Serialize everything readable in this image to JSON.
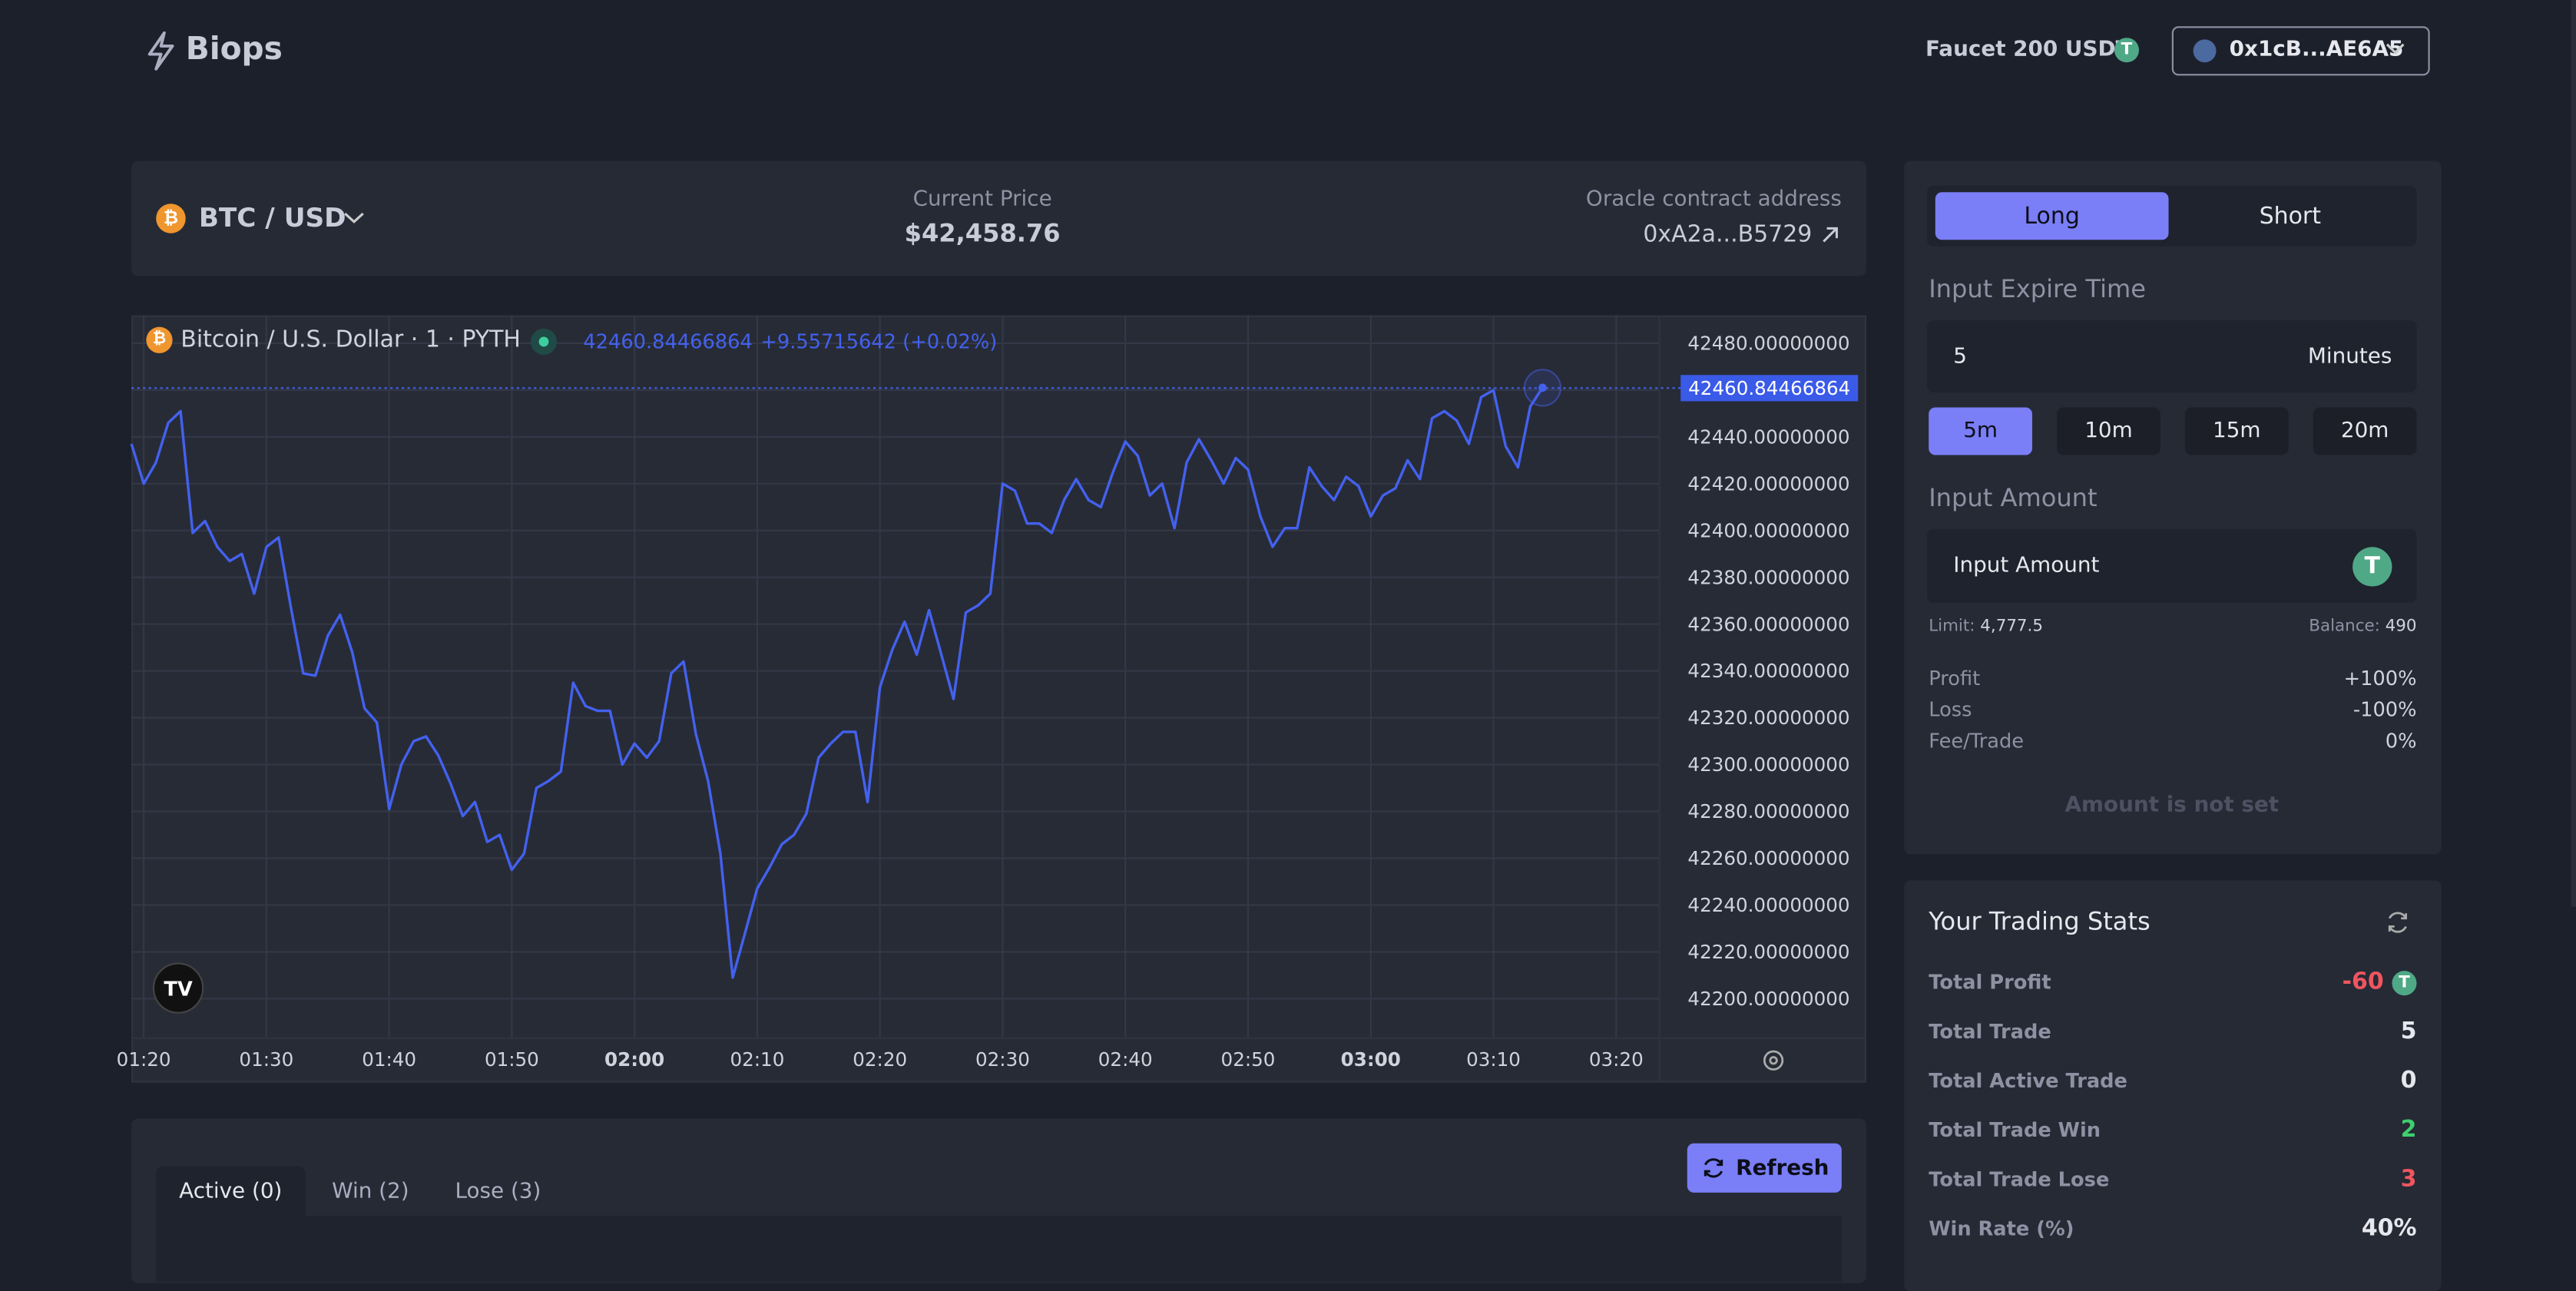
{
  "header": {
    "brand": "Biops",
    "faucet": "Faucet 200 USDT",
    "wallet": "0x1cB...AE6A5"
  },
  "market": {
    "pair": "BTC / USD",
    "price_label": "Current Price",
    "price": "$42,458.76",
    "oracle_label": "Oracle contract address",
    "oracle": "0xA2a...B5729"
  },
  "price_chart": {
    "type": "line",
    "title": "Bitcoin / U.S. Dollar · 1 · PYTH",
    "last_value": 42460.84466864,
    "change": "+9.55715642 (+0.02%)",
    "x": [
      "01:19",
      "01:20",
      "01:21",
      "01:22",
      "01:23",
      "01:24",
      "01:25",
      "01:26",
      "01:27",
      "01:28",
      "01:29",
      "01:30",
      "01:31",
      "01:32",
      "01:33",
      "01:34",
      "01:35",
      "01:36",
      "01:37",
      "01:38",
      "01:39",
      "01:40",
      "01:41",
      "01:42",
      "01:43",
      "01:44",
      "01:45",
      "01:46",
      "01:47",
      "01:48",
      "01:49",
      "01:50",
      "01:51",
      "01:52",
      "01:53",
      "01:54",
      "01:55",
      "01:56",
      "01:57",
      "01:58",
      "01:59",
      "02:00",
      "02:01",
      "02:02",
      "02:03",
      "02:04",
      "02:05",
      "02:06",
      "02:07",
      "02:08",
      "02:09",
      "02:10",
      "02:11",
      "02:12",
      "02:13",
      "02:14",
      "02:15",
      "02:16",
      "02:17",
      "02:18",
      "02:19",
      "02:20",
      "02:21",
      "02:22",
      "02:23",
      "02:24",
      "02:25",
      "02:26",
      "02:27",
      "02:28",
      "02:29",
      "02:30",
      "02:31",
      "02:32",
      "02:33",
      "02:34",
      "02:35",
      "02:36",
      "02:37",
      "02:38",
      "02:39",
      "02:40",
      "02:41",
      "02:42",
      "02:43",
      "02:44",
      "02:45",
      "02:46",
      "02:47",
      "02:48",
      "02:49",
      "02:50",
      "02:51",
      "02:52",
      "02:53",
      "02:54",
      "02:55",
      "02:56",
      "02:57",
      "02:58",
      "02:59",
      "03:00",
      "03:01",
      "03:02",
      "03:03",
      "03:04",
      "03:05",
      "03:06",
      "03:07",
      "03:08",
      "03:09",
      "03:10",
      "03:11",
      "03:12",
      "03:13",
      "03:14"
    ],
    "series": [
      {
        "color": "#4361ee",
        "values": [
          42437,
          42420,
          42429,
          42446,
          42451,
          42399,
          42404,
          42393,
          42387,
          42390,
          42373,
          42393,
          42397,
          42367,
          42339,
          42338,
          42355,
          42364,
          42348,
          42324,
          42318,
          42281,
          42300,
          42310,
          42312,
          42304,
          42292,
          42278,
          42284,
          42267,
          42270,
          42255,
          42262,
          42290,
          42293,
          42297,
          42335,
          42325,
          42323,
          42323,
          42300,
          42309,
          42303,
          42310,
          42339,
          42344,
          42313,
          42293,
          42262,
          42209,
          42228,
          42247,
          42256,
          42266,
          42270,
          42279,
          42303,
          42309,
          42314,
          42314,
          42284,
          42333,
          42349,
          42361,
          42347,
          42366,
          42347,
          42328,
          42365,
          42368,
          42373,
          42420,
          42417,
          42403,
          42403,
          42399,
          42413,
          42422,
          42413,
          42410,
          42425,
          42438,
          42432,
          42415,
          42420,
          42401,
          42429,
          42439,
          42430,
          42420,
          42431,
          42426,
          42406,
          42393,
          42401,
          42401,
          42427,
          42419,
          42413,
          42423,
          42419,
          42406,
          42415,
          42418,
          42430,
          42422,
          42448,
          42451,
          42447,
          42437,
          42457,
          42460,
          42436,
          42427,
          42453,
          42461
        ]
      }
    ],
    "xlim": [
      "01:19",
      "03:22"
    ],
    "xticks": [
      "01:20",
      "01:30",
      "01:40",
      "01:50",
      "02:00",
      "02:10",
      "02:20",
      "02:30",
      "02:40",
      "02:50",
      "03:00",
      "03:10",
      "03:20"
    ],
    "ylim": [
      42184.5,
      42491.2
    ],
    "yticks": [
      {
        "value": 42200,
        "label": "42200.00000000"
      },
      {
        "value": 42220,
        "label": "42220.00000000"
      },
      {
        "value": 42240,
        "label": "42240.00000000"
      },
      {
        "value": 42260,
        "label": "42260.00000000"
      },
      {
        "value": 42280,
        "label": "42280.00000000"
      },
      {
        "value": 42300,
        "label": "42300.00000000"
      },
      {
        "value": 42320,
        "label": "42320.00000000"
      },
      {
        "value": 42340,
        "label": "42340.00000000"
      },
      {
        "value": 42360,
        "label": "42360.00000000"
      },
      {
        "value": 42380,
        "label": "42380.00000000"
      },
      {
        "value": 42400,
        "label": "42400.00000000"
      },
      {
        "value": 42420,
        "label": "42420.00000000"
      },
      {
        "value": 42440,
        "label": "42440.00000000"
      },
      {
        "value": 42460,
        "label": "42460.00000000"
      },
      {
        "value": 42480,
        "label": "42480.00000000"
      }
    ],
    "grid": true
  },
  "trade": {
    "tabs": [
      "Long",
      "Short"
    ],
    "expire_label": "Input Expire Time",
    "expire_value": "5",
    "expire_unit": "Minutes",
    "durations": [
      "5m",
      "10m",
      "15m",
      "20m"
    ],
    "amount_label": "Input Amount",
    "amount_placeholder": "Input Amount",
    "limit_label": "Limit:",
    "limit": "4,777.5",
    "balance_label": "Balance:",
    "balance": "490",
    "terms": [
      [
        "Profit",
        "+100%"
      ],
      [
        "Loss",
        "-100%"
      ],
      [
        "Fee/Trade",
        "0%"
      ]
    ],
    "submit": "Amount is not set"
  },
  "stats": {
    "title": "Your Trading Stats",
    "rows": [
      {
        "label": "Total Profit",
        "value": "-60",
        "color": "#f0555f"
      },
      {
        "label": "Total Trade",
        "value": "5",
        "color": "#e6e8ee"
      },
      {
        "label": "Total Active Trade",
        "value": "0",
        "color": "#e6e8ee"
      },
      {
        "label": "Total Trade Win",
        "value": "2",
        "color": "#3ecf6e"
      },
      {
        "label": "Total Trade Lose",
        "value": "3",
        "color": "#f0555f"
      },
      {
        "label": "Win Rate (%)",
        "value": "40%",
        "color": "#e6e8ee"
      }
    ]
  },
  "history": {
    "tabs": [
      "Active (0)",
      "Win (2)",
      "Lose (3)"
    ],
    "refresh": "Refresh"
  }
}
